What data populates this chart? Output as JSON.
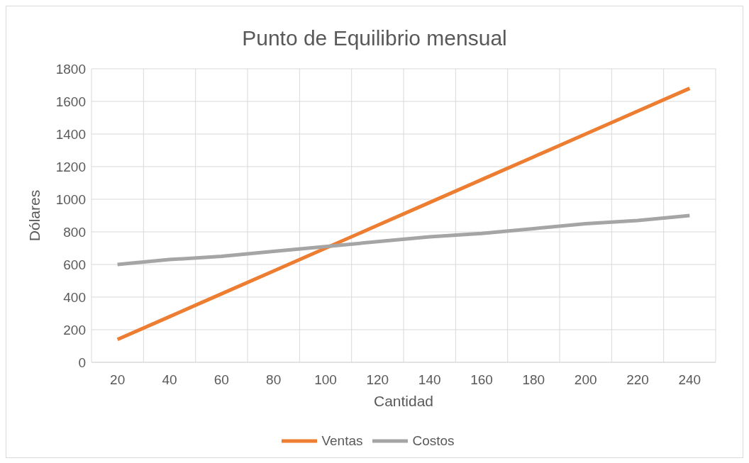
{
  "chart_data": {
    "type": "line",
    "title": "Punto de Equilibrio mensual",
    "xlabel": "Cantidad",
    "ylabel": "Dólares",
    "categories": [
      "20",
      "40",
      "60",
      "80",
      "100",
      "120",
      "140",
      "160",
      "180",
      "200",
      "220",
      "240"
    ],
    "series": [
      {
        "name": "Ventas",
        "color": "#ed7d31",
        "values": [
          140,
          280,
          420,
          560,
          700,
          840,
          980,
          1120,
          1260,
          1400,
          1540,
          1680
        ]
      },
      {
        "name": "Costos",
        "color": "#a5a5a5",
        "values": [
          600,
          630,
          650,
          680,
          710,
          740,
          770,
          790,
          820,
          850,
          870,
          900
        ]
      }
    ],
    "ylim": [
      0,
      1800
    ],
    "yticks": [
      0,
      200,
      400,
      600,
      800,
      1000,
      1200,
      1400,
      1600,
      1800
    ],
    "grid": true,
    "legend": "bottom",
    "marker": "none",
    "line_style": "solid"
  }
}
